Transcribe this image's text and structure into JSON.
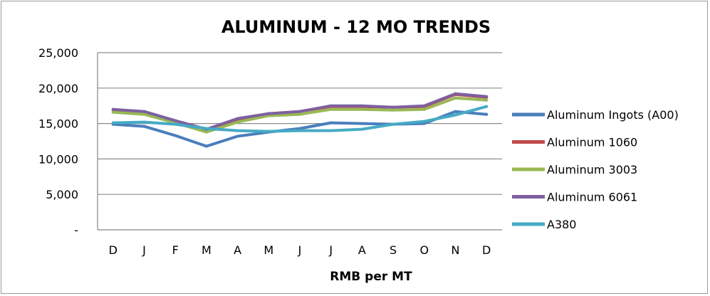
{
  "chart_data": {
    "type": "line",
    "title": "ALUMINUM - 12 MO TRENDS",
    "xlabel": "RMB per MT",
    "ylabel": "",
    "categories": [
      "D",
      "J",
      "F",
      "M",
      "A",
      "M",
      "J",
      "J",
      "A",
      "S",
      "O",
      "N",
      "D"
    ],
    "ylim": [
      0,
      25000
    ],
    "yticks": [
      {
        "value": 0,
        "label": "-"
      },
      {
        "value": 5000,
        "label": "5,000"
      },
      {
        "value": 10000,
        "label": "10,000"
      },
      {
        "value": 15000,
        "label": "15,000"
      },
      {
        "value": 20000,
        "label": "20,000"
      },
      {
        "value": 25000,
        "label": "25,000"
      }
    ],
    "grid": true,
    "legend_position": "right",
    "series": [
      {
        "name": "Aluminum Ingots (A00)",
        "color": "#4a7ebb",
        "values": [
          14900,
          14600,
          13300,
          11800,
          13200,
          13800,
          14300,
          15100,
          15000,
          14900,
          15000,
          16700,
          16300
        ]
      },
      {
        "name": "Aluminum 1060",
        "color": "#be4b48",
        "values": [
          16900,
          16600,
          15300,
          14100,
          15600,
          16400,
          16700,
          17400,
          17400,
          17300,
          17400,
          19100,
          18700
        ]
      },
      {
        "name": "Aluminum 3003",
        "color": "#98b954",
        "values": [
          16600,
          16300,
          15100,
          13800,
          15200,
          16100,
          16300,
          17000,
          17000,
          16900,
          17000,
          18600,
          18300
        ]
      },
      {
        "name": "Aluminum 6061",
        "color": "#7d60a0",
        "values": [
          17000,
          16700,
          15400,
          14200,
          15700,
          16400,
          16700,
          17500,
          17500,
          17300,
          17500,
          19200,
          18800
        ]
      },
      {
        "name": "A380",
        "color": "#46aac5",
        "values": [
          15100,
          15200,
          14900,
          14300,
          14000,
          13900,
          14000,
          14000,
          14200,
          14900,
          15300,
          16200,
          17400
        ]
      }
    ]
  }
}
